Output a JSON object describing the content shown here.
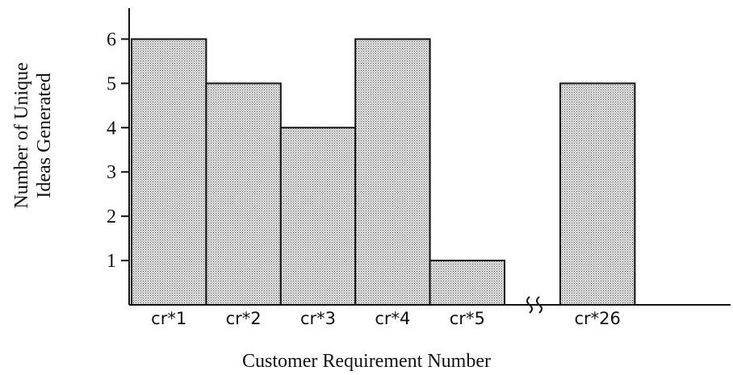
{
  "chart_data": {
    "type": "bar",
    "categories": [
      "cr*1",
      "cr*2",
      "cr*3",
      "cr*4",
      "cr*5",
      "cr*26"
    ],
    "values": [
      6,
      5,
      4,
      6,
      1,
      5
    ],
    "xlabel": "Customer Requirement Number",
    "ylabel": [
      "Number of Unique",
      "Ideas Generated"
    ],
    "ylim": [
      0,
      6.7
    ],
    "yticks": [
      1,
      2,
      3,
      4,
      5,
      6
    ],
    "color": "#c8c8c8"
  }
}
